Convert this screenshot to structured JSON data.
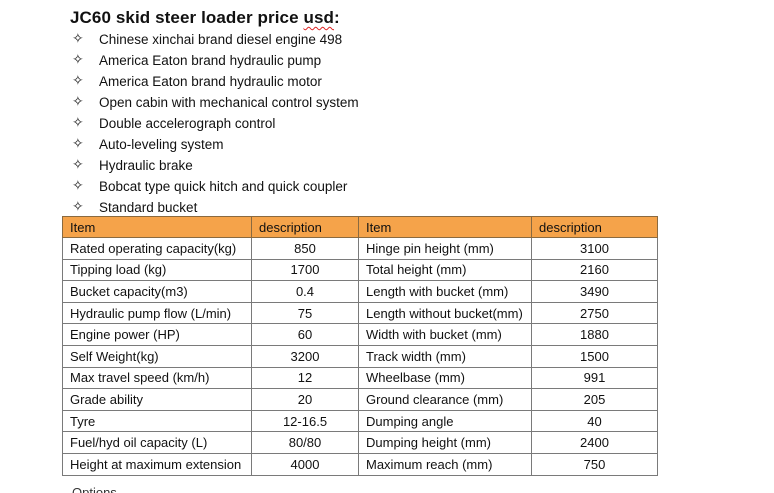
{
  "title": {
    "prefix": "JC60 skid steer loader price ",
    "squiggle": "usd",
    "suffix": ":"
  },
  "bullet_glyph": "✧",
  "features": [
    "Chinese xinchai brand diesel engine 498",
    "America Eaton brand hydraulic pump",
    "America Eaton brand hydraulic motor",
    "Open cabin with mechanical control system",
    "Double accelerograph control",
    "Auto-leveling system",
    "Hydraulic brake",
    "Bobcat type quick hitch and quick coupler",
    "Standard bucket"
  ],
  "table": {
    "header_color": "#f5a34a",
    "headers": [
      "Item",
      "description",
      "Item",
      "description"
    ],
    "rows": [
      [
        "Rated operating capacity(kg)",
        "850",
        "Hinge pin height (mm)",
        "3100"
      ],
      [
        "Tipping load (kg)",
        "1700",
        "Total height (mm)",
        "2160"
      ],
      [
        "Bucket capacity(m3)",
        "0.4",
        "Length with bucket (mm)",
        "3490"
      ],
      [
        "Hydraulic pump flow (L/min)",
        "75",
        "Length without bucket(mm)",
        "2750"
      ],
      [
        "Engine power (HP)",
        "60",
        "Width with bucket (mm)",
        "1880"
      ],
      [
        "Self Weight(kg)",
        "3200",
        "Track width (mm)",
        "1500"
      ],
      [
        "Max travel speed (km/h)",
        "12",
        "Wheelbase (mm)",
        "991"
      ],
      [
        "Grade ability",
        "20",
        "Ground clearance (mm)",
        "205"
      ],
      [
        "Tyre",
        "12-16.5",
        "Dumping angle",
        "40"
      ],
      [
        "Fuel/hyd oil capacity (L)",
        "80/80",
        "Dumping height (mm)",
        "2400"
      ],
      [
        "Height at maximum extension",
        "4000",
        "Maximum reach (mm)",
        "750"
      ]
    ]
  },
  "trailing_text": "Options"
}
